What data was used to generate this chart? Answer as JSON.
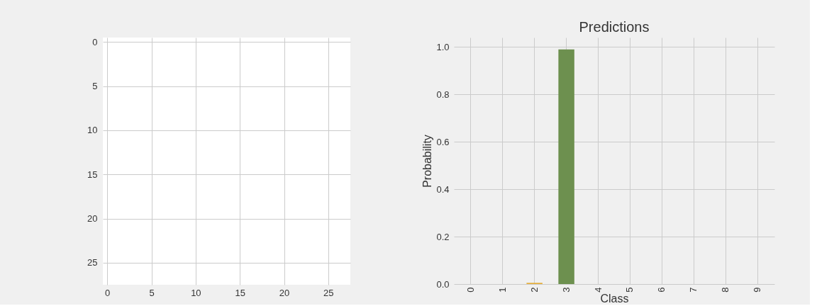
{
  "chart_data": [
    {
      "type": "heatmap",
      "xlim": [
        -0.5,
        27.5
      ],
      "ylim": [
        27.5,
        -0.5
      ],
      "xticks": [
        0,
        5,
        10,
        15,
        20,
        25
      ],
      "yticks": [
        0,
        5,
        10,
        15,
        20,
        25
      ],
      "grid": true
    },
    {
      "type": "bar",
      "title": "Predictions",
      "xlabel": "Class",
      "ylabel": "Probability",
      "categories": [
        "0",
        "1",
        "2",
        "3",
        "4",
        "5",
        "6",
        "7",
        "8",
        "9"
      ],
      "values": [
        0,
        0,
        0.005,
        0.99,
        0,
        0,
        0,
        0,
        0,
        0
      ],
      "colors": [
        "#008fd5",
        "#fc4f30",
        "#e5ae38",
        "#6d904f",
        "#8b8b8b",
        "#810f7c",
        "#008fd5",
        "#fc4f30",
        "#e5ae38",
        "#6d904f"
      ],
      "ylim": [
        0,
        1.04
      ],
      "yticks": [
        {
          "value": 0,
          "label": "0.0"
        },
        0.2,
        0.4,
        0.6,
        0.8,
        {
          "value": 1,
          "label": "1.0"
        }
      ],
      "grid": true
    }
  ]
}
